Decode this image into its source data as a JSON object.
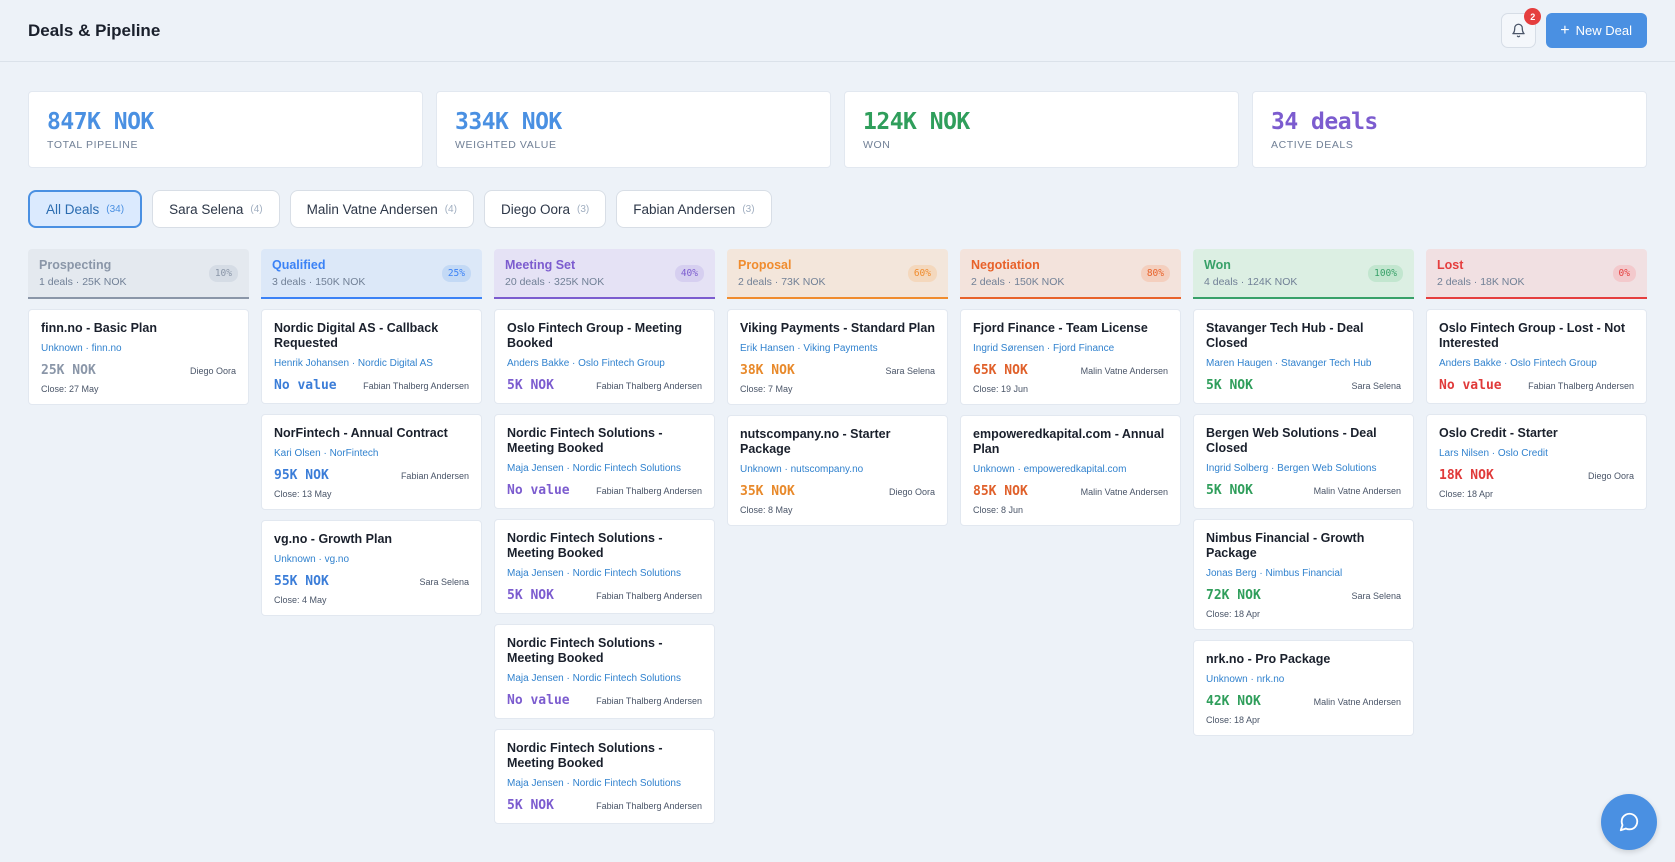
{
  "header": {
    "title": "Deals & Pipeline",
    "notification_count": "2",
    "new_deal_label": "New Deal"
  },
  "stats": [
    {
      "value": "847K NOK",
      "label": "TOTAL PIPELINE",
      "color": "#4a90e2"
    },
    {
      "value": "334K NOK",
      "label": "WEIGHTED VALUE",
      "color": "#4a90e2"
    },
    {
      "value": "124K NOK",
      "label": "WON",
      "color": "#2f9e5b"
    },
    {
      "value": "34 deals",
      "label": "ACTIVE DEALS",
      "color": "#7c5ccf"
    }
  ],
  "filters": [
    {
      "label": "All Deals",
      "count": "(34)",
      "active": true
    },
    {
      "label": "Sara Selena",
      "count": "(4)",
      "active": false
    },
    {
      "label": "Malin Vatne Andersen",
      "count": "(4)",
      "active": false
    },
    {
      "label": "Diego Oora",
      "count": "(3)",
      "active": false
    },
    {
      "label": "Fabian Andersen",
      "count": "(3)",
      "active": false
    }
  ],
  "columns": [
    {
      "name": "Prospecting",
      "meta": "1 deals · 25K NOK",
      "pct": "10%",
      "color": "#8a96a8",
      "header_bg": "#e4e9ef",
      "pct_bg": "#d5dce5",
      "value_color": "#8a96a8",
      "cards": [
        {
          "title": "finn.no - Basic Plan",
          "sub": "Unknown · finn.no",
          "value": "25K NOK",
          "owner": "Diego Oora",
          "close": "Close: 27 May"
        }
      ]
    },
    {
      "name": "Qualified",
      "meta": "3 deals · 150K NOK",
      "pct": "25%",
      "color": "#3b82f6",
      "header_bg": "#dce8f8",
      "pct_bg": "#c3d9f5",
      "value_color": "#3b7dd8",
      "cards": [
        {
          "title": "Nordic Digital AS - Callback Requested",
          "sub": "Henrik Johansen · Nordic Digital AS",
          "value": "No value",
          "owner": "Fabian Thalberg Andersen",
          "close": ""
        },
        {
          "title": "NorFintech - Annual Contract",
          "sub": "Kari Olsen · NorFintech",
          "value": "95K NOK",
          "owner": "Fabian Andersen",
          "close": "Close: 13 May"
        },
        {
          "title": "vg.no - Growth Plan",
          "sub": "Unknown · vg.no",
          "value": "55K NOK",
          "owner": "Sara Selena",
          "close": "Close: 4 May"
        }
      ]
    },
    {
      "name": "Meeting Set",
      "meta": "20 deals · 325K NOK",
      "pct": "40%",
      "color": "#7c5ccf",
      "header_bg": "#e5e2f5",
      "pct_bg": "#d6cff0",
      "value_color": "#7c5ccf",
      "cards": [
        {
          "title": "Oslo Fintech Group - Meeting Booked",
          "sub": "Anders Bakke · Oslo Fintech Group",
          "value": "5K NOK",
          "owner": "Fabian Thalberg Andersen",
          "close": ""
        },
        {
          "title": "Nordic Fintech Solutions - Meeting Booked",
          "sub": "Maja Jensen · Nordic Fintech Solutions",
          "value": "No value",
          "owner": "Fabian Thalberg Andersen",
          "close": ""
        },
        {
          "title": "Nordic Fintech Solutions - Meeting Booked",
          "sub": "Maja Jensen · Nordic Fintech Solutions",
          "value": "5K NOK",
          "owner": "Fabian Thalberg Andersen",
          "close": ""
        },
        {
          "title": "Nordic Fintech Solutions - Meeting Booked",
          "sub": "Maja Jensen · Nordic Fintech Solutions",
          "value": "No value",
          "owner": "Fabian Thalberg Andersen",
          "close": ""
        },
        {
          "title": "Nordic Fintech Solutions - Meeting Booked",
          "sub": "Maja Jensen · Nordic Fintech Solutions",
          "value": "5K NOK",
          "owner": "Fabian Thalberg Andersen",
          "close": ""
        }
      ]
    },
    {
      "name": "Proposal",
      "meta": "2 deals · 73K NOK",
      "pct": "60%",
      "color": "#f08c2e",
      "header_bg": "#f3e6db",
      "pct_bg": "#f4d8bd",
      "value_color": "#e8892a",
      "cards": [
        {
          "title": "Viking Payments - Standard Plan",
          "sub": "Erik Hansen · Viking Payments",
          "value": "38K NOK",
          "owner": "Sara Selena",
          "close": "Close: 7 May"
        },
        {
          "title": "nutscompany.no - Starter Package",
          "sub": "Unknown · nutscompany.no",
          "value": "35K NOK",
          "owner": "Diego Oora",
          "close": "Close: 8 May"
        }
      ]
    },
    {
      "name": "Negotiation",
      "meta": "2 deals · 150K NOK",
      "pct": "80%",
      "color": "#e8622a",
      "header_bg": "#f3e3dc",
      "pct_bg": "#f4cfbe",
      "value_color": "#e0602a",
      "cards": [
        {
          "title": "Fjord Finance - Team License",
          "sub": "Ingrid Sørensen · Fjord Finance",
          "value": "65K NOK",
          "owner": "Malin Vatne Andersen",
          "close": "Close: 19 Jun"
        },
        {
          "title": "empoweredkapital.com - Annual Plan",
          "sub": "Unknown · empoweredkapital.com",
          "value": "85K NOK",
          "owner": "Malin Vatne Andersen",
          "close": "Close: 8 Jun"
        }
      ]
    },
    {
      "name": "Won",
      "meta": "4 deals · 124K NOK",
      "pct": "100%",
      "color": "#38a169",
      "header_bg": "#dcefe3",
      "pct_bg": "#c2e6cf",
      "value_color": "#2f9e5b",
      "cards": [
        {
          "title": "Stavanger Tech Hub - Deal Closed",
          "sub": "Maren Haugen · Stavanger Tech Hub",
          "value": "5K NOK",
          "owner": "Sara Selena",
          "close": ""
        },
        {
          "title": "Bergen Web Solutions - Deal Closed",
          "sub": "Ingrid Solberg · Bergen Web Solutions",
          "value": "5K NOK",
          "owner": "Malin Vatne Andersen",
          "close": ""
        },
        {
          "title": "Nimbus Financial - Growth Package",
          "sub": "Jonas Berg · Nimbus Financial",
          "value": "72K NOK",
          "owner": "Sara Selena",
          "close": "Close: 18 Apr"
        },
        {
          "title": "nrk.no - Pro Package",
          "sub": "Unknown · nrk.no",
          "value": "42K NOK",
          "owner": "Malin Vatne Andersen",
          "close": "Close: 18 Apr"
        }
      ]
    },
    {
      "name": "Lost",
      "meta": "2 deals · 18K NOK",
      "pct": "0%",
      "color": "#e53e3e",
      "header_bg": "#f1e0e2",
      "pct_bg": "#f3c9cc",
      "value_color": "#e03a3a",
      "cards": [
        {
          "title": "Oslo Fintech Group - Lost - Not Interested",
          "sub": "Anders Bakke · Oslo Fintech Group",
          "value": "No value",
          "owner": "Fabian Thalberg Andersen",
          "close": ""
        },
        {
          "title": "Oslo Credit - Starter",
          "sub": "Lars Nilsen · Oslo Credit",
          "value": "18K NOK",
          "owner": "Diego Oora",
          "close": "Close: 18 Apr"
        }
      ]
    }
  ],
  "icons": {
    "bell": "bell-icon",
    "plus": "plus-icon",
    "chat": "chat-icon"
  }
}
